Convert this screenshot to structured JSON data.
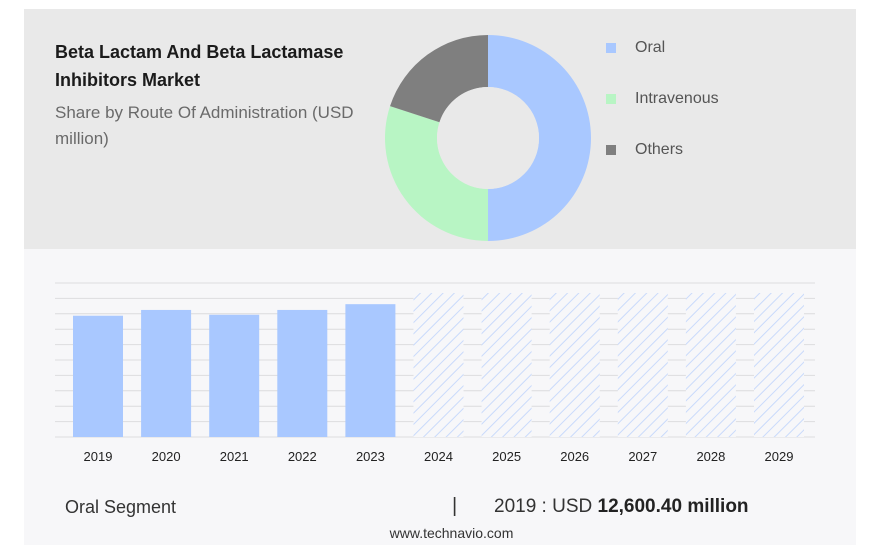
{
  "header": {
    "title": "Beta Lactam And Beta Lactamase Inhibitors Market",
    "subtitle": "Share by Route Of Administration (USD million)"
  },
  "chart_data": [
    {
      "type": "pie",
      "variant": "donut",
      "labels": [
        "Oral",
        "Intravenous",
        "Others"
      ],
      "values": [
        50,
        30,
        20
      ],
      "colors": [
        "#a9c8ff",
        "#b8f5c4",
        "#7f7f7f"
      ],
      "legend_position": "right"
    },
    {
      "type": "bar",
      "categories": [
        "2019",
        "2020",
        "2021",
        "2022",
        "2023",
        "2024",
        "2025",
        "2026",
        "2027",
        "2028",
        "2029"
      ],
      "values": [
        12600.4,
        13200,
        12700,
        13200,
        13800,
        null,
        null,
        null,
        null,
        null,
        null
      ],
      "forecast_categories": [
        "2024",
        "2025",
        "2026",
        "2027",
        "2028",
        "2029"
      ],
      "series_color": "#a9c8ff",
      "forecast_pattern": "diagonal-hatch",
      "grid": true,
      "ylim": [
        0,
        16000
      ]
    }
  ],
  "footer": {
    "segment_label": "Oral Segment",
    "separator": "|",
    "value_prefix": "2019 : USD",
    "value_bold": "12,600.40 million",
    "source": "www.technavio.com"
  }
}
